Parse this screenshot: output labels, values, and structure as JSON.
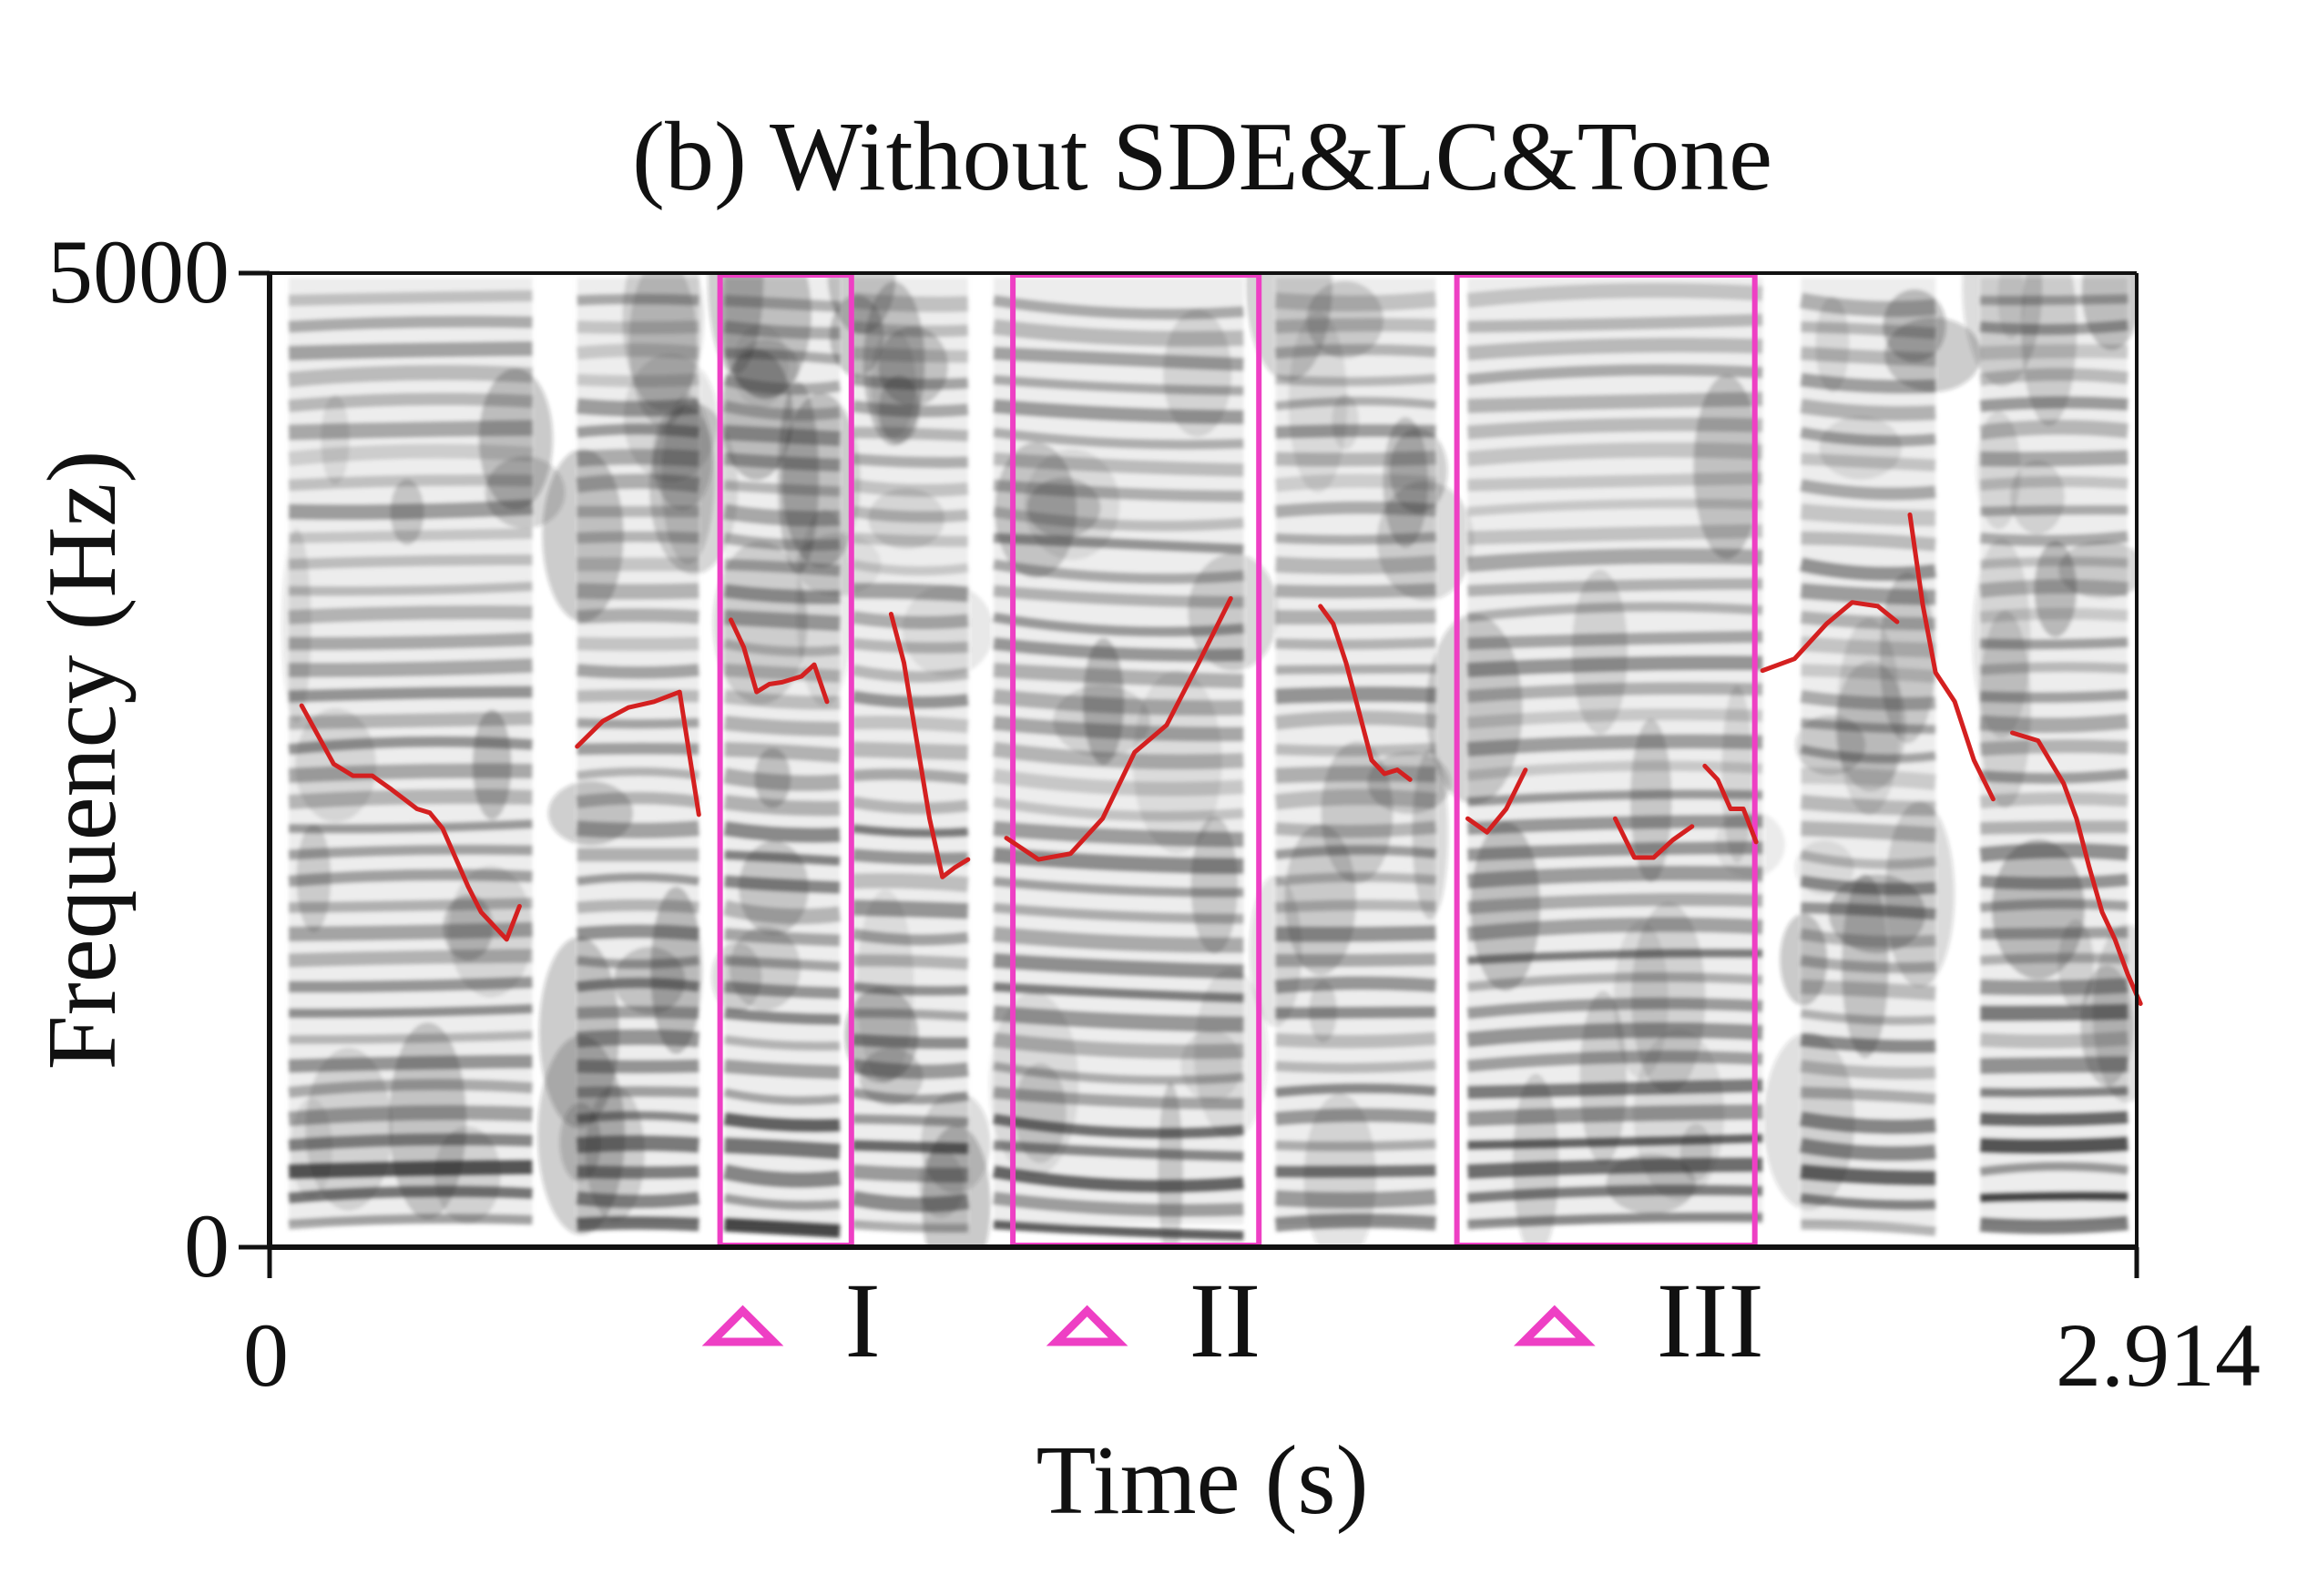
{
  "chart_data": {
    "type": "spectrogram",
    "title": "(b) Without SDE&LC&Tone",
    "xlabel": "Time (s)",
    "ylabel": "Frequency (Hz)",
    "xlim": [
      0,
      2.914
    ],
    "ylim": [
      0,
      5000
    ],
    "x_tick_labels": [
      "0",
      "2.914"
    ],
    "y_tick_labels": [
      "0",
      "5000"
    ],
    "grid": false,
    "pitch_color": "#d42020",
    "highlight_color": "#ee3fc4",
    "voiced_segments": [
      {
        "start": 0.03,
        "end": 0.41
      },
      {
        "start": 0.48,
        "end": 0.67
      },
      {
        "start": 0.71,
        "end": 0.89
      },
      {
        "start": 0.91,
        "end": 1.09
      },
      {
        "start": 1.13,
        "end": 1.52
      },
      {
        "start": 1.57,
        "end": 1.82
      },
      {
        "start": 1.87,
        "end": 2.33
      },
      {
        "start": 2.39,
        "end": 2.6
      },
      {
        "start": 2.67,
        "end": 2.9
      }
    ],
    "pitch_contours": [
      {
        "t": [
          0.05,
          0.08,
          0.1,
          0.13,
          0.16,
          0.19,
          0.23,
          0.25,
          0.27,
          0.29,
          0.31,
          0.33,
          0.35,
          0.37,
          0.39
        ],
        "f": [
          2780,
          2600,
          2480,
          2420,
          2420,
          2350,
          2250,
          2230,
          2150,
          2000,
          1850,
          1720,
          1650,
          1580,
          1750
        ]
      },
      {
        "t": [
          0.48,
          0.52,
          0.56,
          0.6,
          0.64,
          0.67
        ],
        "f": [
          2570,
          2700,
          2770,
          2800,
          2850,
          2220
        ]
      },
      {
        "t": [
          0.72,
          0.74,
          0.76,
          0.78,
          0.8,
          0.83,
          0.85,
          0.87
        ],
        "f": [
          3220,
          3080,
          2850,
          2890,
          2900,
          2930,
          2990,
          2800
        ]
      },
      {
        "t": [
          0.97,
          0.99,
          1.01,
          1.03,
          1.05,
          1.07,
          1.09
        ],
        "f": [
          3250,
          3000,
          2600,
          2200,
          1900,
          1950,
          1990
        ]
      },
      {
        "t": [
          1.15,
          1.2,
          1.25,
          1.3,
          1.35,
          1.4,
          1.45,
          1.5
        ],
        "f": [
          2100,
          1990,
          2020,
          2200,
          2540,
          2680,
          3000,
          3330
        ]
      },
      {
        "t": [
          1.64,
          1.66,
          1.68,
          1.7,
          1.72,
          1.74,
          1.76,
          1.78
        ],
        "f": [
          3290,
          3200,
          3000,
          2750,
          2500,
          2430,
          2450,
          2400
        ]
      },
      {
        "t": [
          1.87,
          1.9,
          1.93,
          1.96
        ],
        "f": [
          2200,
          2130,
          2250,
          2450
        ]
      },
      {
        "t": [
          2.1,
          2.13,
          2.16,
          2.19,
          2.22
        ],
        "f": [
          2200,
          2000,
          2000,
          2090,
          2160
        ]
      },
      {
        "t": [
          2.24,
          2.26,
          2.28,
          2.3,
          2.32
        ],
        "f": [
          2470,
          2400,
          2250,
          2250,
          2080
        ]
      },
      {
        "t": [
          2.33,
          2.38,
          2.43,
          2.47,
          2.51,
          2.54
        ],
        "f": [
          2960,
          3020,
          3200,
          3310,
          3290,
          3210
        ]
      },
      {
        "t": [
          2.56,
          2.58,
          2.6,
          2.63,
          2.66,
          2.69
        ],
        "f": [
          3760,
          3300,
          2950,
          2800,
          2500,
          2300
        ]
      },
      {
        "t": [
          2.72,
          2.76,
          2.8,
          2.82,
          2.84,
          2.86,
          2.88,
          2.9,
          2.92
        ],
        "f": [
          2640,
          2600,
          2380,
          2200,
          1950,
          1720,
          1580,
          1400,
          1250
        ]
      }
    ],
    "highlight_boxes": [
      {
        "label": "I",
        "t_start": 0.703,
        "t_end": 0.908
      },
      {
        "label": "II",
        "t_start": 1.16,
        "t_end": 1.544
      },
      {
        "label": "III",
        "t_start": 1.853,
        "t_end": 2.318
      }
    ]
  }
}
